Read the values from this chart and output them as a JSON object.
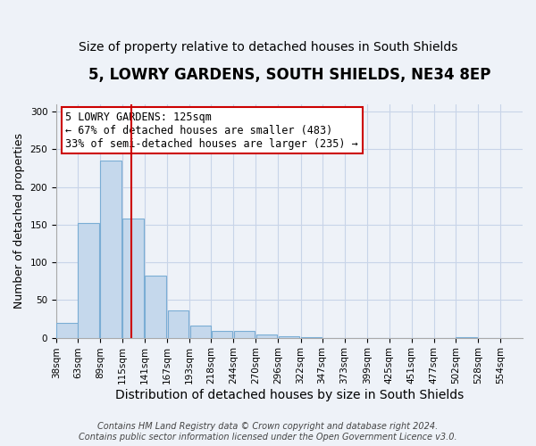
{
  "title": "5, LOWRY GARDENS, SOUTH SHIELDS, NE34 8EP",
  "subtitle": "Size of property relative to detached houses in South Shields",
  "xlabel": "Distribution of detached houses by size in South Shields",
  "ylabel": "Number of detached properties",
  "bar_left_edges": [
    38,
    63,
    89,
    115,
    141,
    167,
    193,
    218,
    244,
    270,
    296,
    322,
    347,
    373,
    399,
    425,
    451,
    477,
    502,
    528
  ],
  "bar_heights": [
    20,
    152,
    235,
    158,
    82,
    36,
    16,
    9,
    9,
    4,
    2,
    1,
    0,
    0,
    0,
    0,
    0,
    0,
    1,
    0
  ],
  "bin_width": 25,
  "tick_labels": [
    "38sqm",
    "63sqm",
    "89sqm",
    "115sqm",
    "141sqm",
    "167sqm",
    "193sqm",
    "218sqm",
    "244sqm",
    "270sqm",
    "296sqm",
    "322sqm",
    "347sqm",
    "373sqm",
    "399sqm",
    "425sqm",
    "451sqm",
    "477sqm",
    "502sqm",
    "528sqm",
    "554sqm"
  ],
  "tick_positions": [
    38,
    63,
    89,
    115,
    141,
    167,
    193,
    218,
    244,
    270,
    296,
    322,
    347,
    373,
    399,
    425,
    451,
    477,
    502,
    528,
    554
  ],
  "bar_color": "#c5d8ec",
  "bar_edge_color": "#7aadd4",
  "vline_x": 125,
  "vline_color": "#cc0000",
  "annotation_line1": "5 LOWRY GARDENS: 125sqm",
  "annotation_line2": "← 67% of detached houses are smaller (483)",
  "annotation_line3": "33% of semi-detached houses are larger (235) →",
  "ylim": [
    0,
    310
  ],
  "xlim": [
    38,
    580
  ],
  "yticks": [
    0,
    50,
    100,
    150,
    200,
    250,
    300
  ],
  "grid_color": "#c8d4e8",
  "background_color": "#eef2f8",
  "plot_bg_color": "#eef2f8",
  "footer_line1": "Contains HM Land Registry data © Crown copyright and database right 2024.",
  "footer_line2": "Contains public sector information licensed under the Open Government Licence v3.0.",
  "title_fontsize": 12,
  "subtitle_fontsize": 10,
  "xlabel_fontsize": 10,
  "ylabel_fontsize": 9,
  "tick_fontsize": 7.5,
  "annotation_fontsize": 8.5,
  "footer_fontsize": 7
}
